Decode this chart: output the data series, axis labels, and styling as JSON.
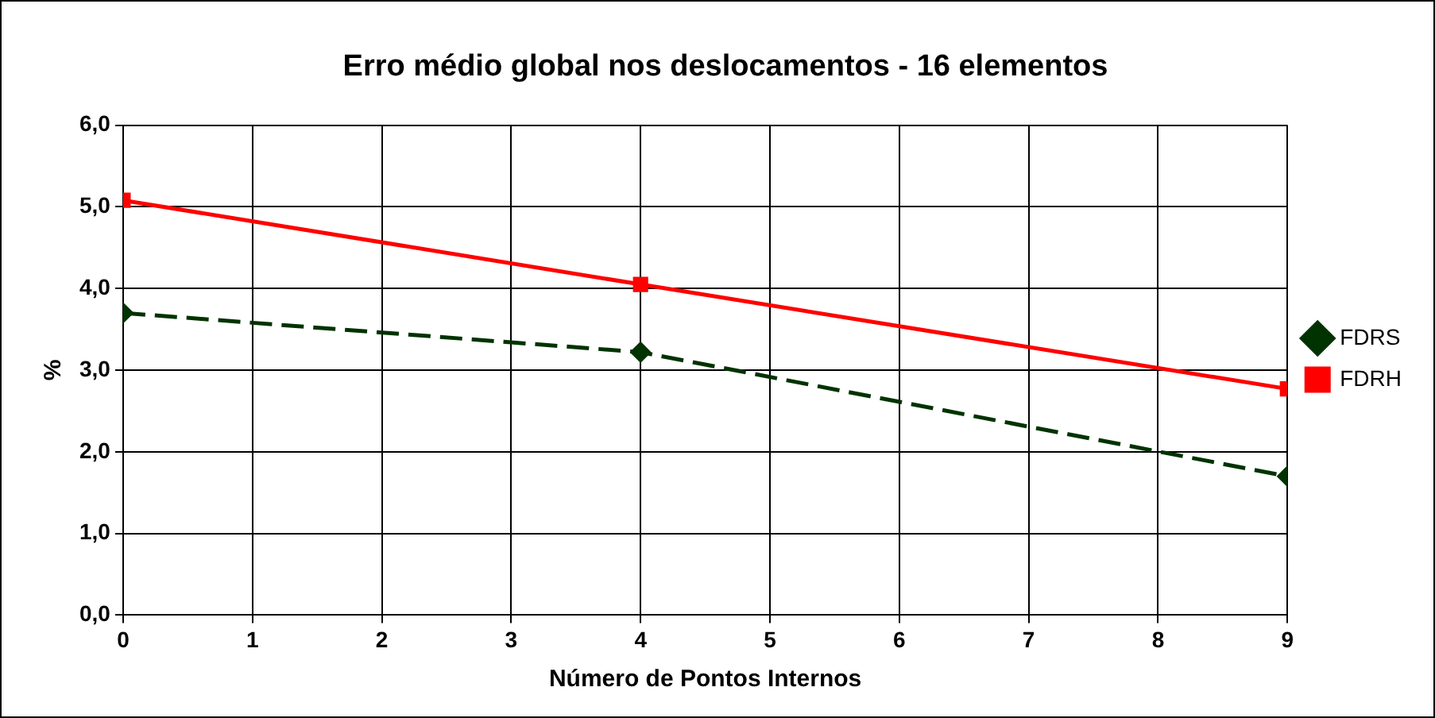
{
  "chart_data": {
    "type": "line",
    "title": "Erro médio global nos deslocamentos - 16 elementos",
    "xlabel": "Número de Pontos Internos",
    "ylabel": "%",
    "x": [
      0,
      4,
      9
    ],
    "series": [
      {
        "name": "FDRS",
        "color": "#003300",
        "values": [
          3.7,
          3.22,
          1.7
        ],
        "marker": "diamond",
        "line_style": "dashed"
      },
      {
        "name": "FDRH",
        "color": "#ff0000",
        "values": [
          5.08,
          4.05,
          2.77
        ],
        "marker": "square",
        "line_style": "solid"
      }
    ],
    "xlim": [
      0,
      9
    ],
    "xticks": [
      0,
      1,
      2,
      3,
      4,
      5,
      6,
      7,
      8,
      9
    ],
    "ylim": [
      0,
      6
    ],
    "yticks": [
      {
        "value": 0,
        "label": "0,0"
      },
      {
        "value": 1,
        "label": "1,0"
      },
      {
        "value": 2,
        "label": "2,0"
      },
      {
        "value": 3,
        "label": "3,0"
      },
      {
        "value": 4,
        "label": "4,0"
      },
      {
        "value": 5,
        "label": "5,0"
      },
      {
        "value": 6,
        "label": "6,0"
      }
    ],
    "grid": true,
    "legend": "right"
  }
}
